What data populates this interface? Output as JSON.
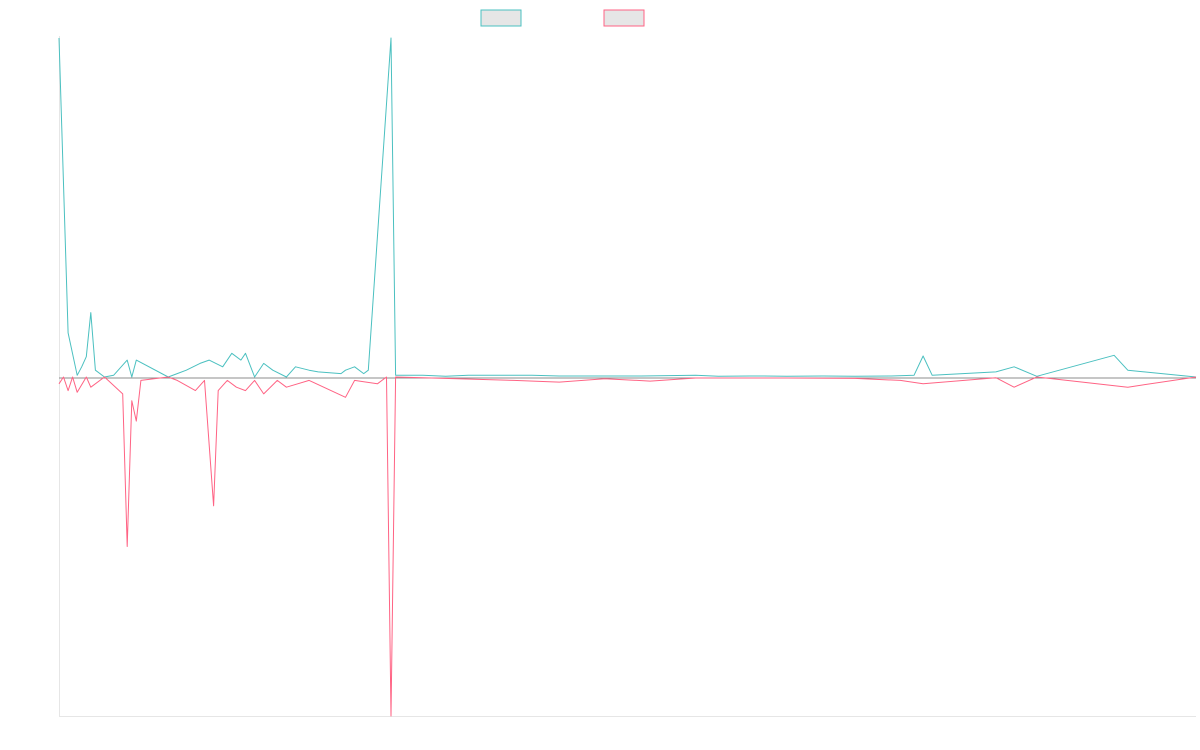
{
  "chart_data": {
    "type": "line",
    "title": "",
    "xlabel": "",
    "ylabel": "",
    "ylim": [
      -1,
      1
    ],
    "grid": false,
    "legend": "top-center",
    "series": [
      {
        "color": "#4bc0c0",
        "fill": "#e6e6e6",
        "points": [
          [
            0,
            1.0
          ],
          [
            2,
            0.13
          ],
          [
            4,
            0.005
          ],
          [
            5,
            0.03
          ],
          [
            6,
            0.06
          ],
          [
            7,
            0.19
          ],
          [
            8,
            0.02
          ],
          [
            10,
            0.0
          ],
          [
            12,
            0.005
          ],
          [
            15,
            0.05
          ],
          [
            16,
            0.0
          ],
          [
            17,
            0.05
          ],
          [
            24,
            0.0
          ],
          [
            26,
            0.01
          ],
          [
            28,
            0.02
          ],
          [
            31,
            0.04
          ],
          [
            33,
            0.05
          ],
          [
            36,
            0.03
          ],
          [
            38,
            0.07
          ],
          [
            40,
            0.05
          ],
          [
            41,
            0.07
          ],
          [
            43,
            0.0
          ],
          [
            45,
            0.04
          ],
          [
            47,
            0.02
          ],
          [
            50,
            0.0
          ],
          [
            52,
            0.03
          ],
          [
            55,
            0.02
          ],
          [
            57,
            0.015
          ],
          [
            62,
            0.01
          ],
          [
            63,
            0.02
          ],
          [
            65,
            0.03
          ],
          [
            67,
            0.01
          ],
          [
            68,
            0.02
          ],
          [
            73,
            1.0
          ],
          [
            74,
            0.005
          ],
          [
            77,
            0.005
          ],
          [
            80,
            0.005
          ],
          [
            85,
            0.002
          ],
          [
            90,
            0.005
          ],
          [
            104,
            0.005
          ],
          [
            110,
            0.003
          ],
          [
            120,
            0.003
          ],
          [
            128,
            0.003
          ],
          [
            140,
            0.005
          ],
          [
            145,
            0.002
          ],
          [
            152,
            0.003
          ],
          [
            155,
            0.003
          ],
          [
            160,
            0.002
          ],
          [
            168,
            0.003
          ],
          [
            175,
            0.002
          ],
          [
            183,
            0.003
          ],
          [
            188,
            0.005
          ],
          [
            190,
            0.062
          ],
          [
            192,
            0.005
          ],
          [
            206,
            0.015
          ],
          [
            210,
            0.03
          ],
          [
            215,
            0.002
          ],
          [
            232,
            0.064
          ],
          [
            235,
            0.02
          ],
          [
            250,
            0.0
          ]
        ]
      },
      {
        "color": "#ff6384",
        "fill": "#e6e6e6",
        "points": [
          [
            0,
            -0.02
          ],
          [
            1,
            0.0
          ],
          [
            2,
            -0.04
          ],
          [
            3,
            0.0
          ],
          [
            4,
            -0.045
          ],
          [
            6,
            0.0
          ],
          [
            7,
            -0.03
          ],
          [
            10,
            0.0
          ],
          [
            14,
            -0.05
          ],
          [
            15,
            -0.5
          ],
          [
            16,
            -0.07
          ],
          [
            17,
            -0.13
          ],
          [
            18,
            -0.01
          ],
          [
            24,
            0.0
          ],
          [
            26,
            -0.01
          ],
          [
            30,
            -0.04
          ],
          [
            32,
            -0.01
          ],
          [
            34,
            -0.38
          ],
          [
            35,
            -0.04
          ],
          [
            37,
            -0.01
          ],
          [
            39,
            -0.03
          ],
          [
            41,
            -0.04
          ],
          [
            43,
            -0.01
          ],
          [
            45,
            -0.05
          ],
          [
            48,
            -0.01
          ],
          [
            50,
            -0.03
          ],
          [
            55,
            -0.01
          ],
          [
            63,
            -0.06
          ],
          [
            65,
            -0.01
          ],
          [
            70,
            -0.02
          ],
          [
            72,
            0.0
          ],
          [
            73,
            -1.0
          ],
          [
            74,
            0.0
          ],
          [
            80,
            -0.002
          ],
          [
            100,
            -0.01
          ],
          [
            110,
            -0.015
          ],
          [
            120,
            -0.005
          ],
          [
            130,
            -0.012
          ],
          [
            140,
            -0.003
          ],
          [
            160,
            -0.003
          ],
          [
            175,
            -0.004
          ],
          [
            185,
            -0.01
          ],
          [
            190,
            -0.02
          ],
          [
            206,
            -0.002
          ],
          [
            210,
            -0.03
          ],
          [
            215,
            0.0
          ],
          [
            235,
            -0.03
          ],
          [
            250,
            0.0
          ]
        ]
      }
    ]
  }
}
